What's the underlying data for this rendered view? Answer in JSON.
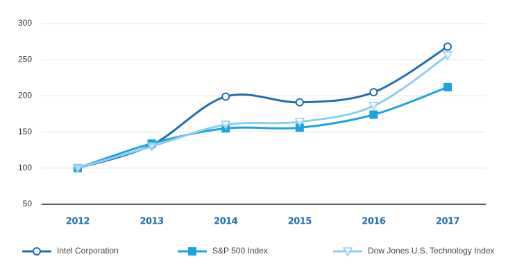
{
  "chart_data": {
    "type": "line",
    "categories": [
      "2012",
      "2013",
      "2014",
      "2015",
      "2016",
      "2017"
    ],
    "series": [
      {
        "name": "Intel Corporation",
        "color": "#1f6db5",
        "marker": "circle",
        "values": [
          100,
          132,
          199,
          191,
          205,
          268
        ]
      },
      {
        "name": "S&P 500 Index",
        "color": "#1aa3e0",
        "marker": "square",
        "values": [
          100,
          134,
          155,
          156,
          174,
          212
        ]
      },
      {
        "name": "Dow Jones U.S. Technology Index",
        "color": "#8ecdf2",
        "marker": "triangle",
        "values": [
          100,
          130,
          160,
          164,
          186,
          256
        ]
      }
    ],
    "ylim": [
      50,
      300
    ],
    "yticks": [
      50,
      100,
      150,
      200,
      250,
      300
    ],
    "grid": true
  }
}
